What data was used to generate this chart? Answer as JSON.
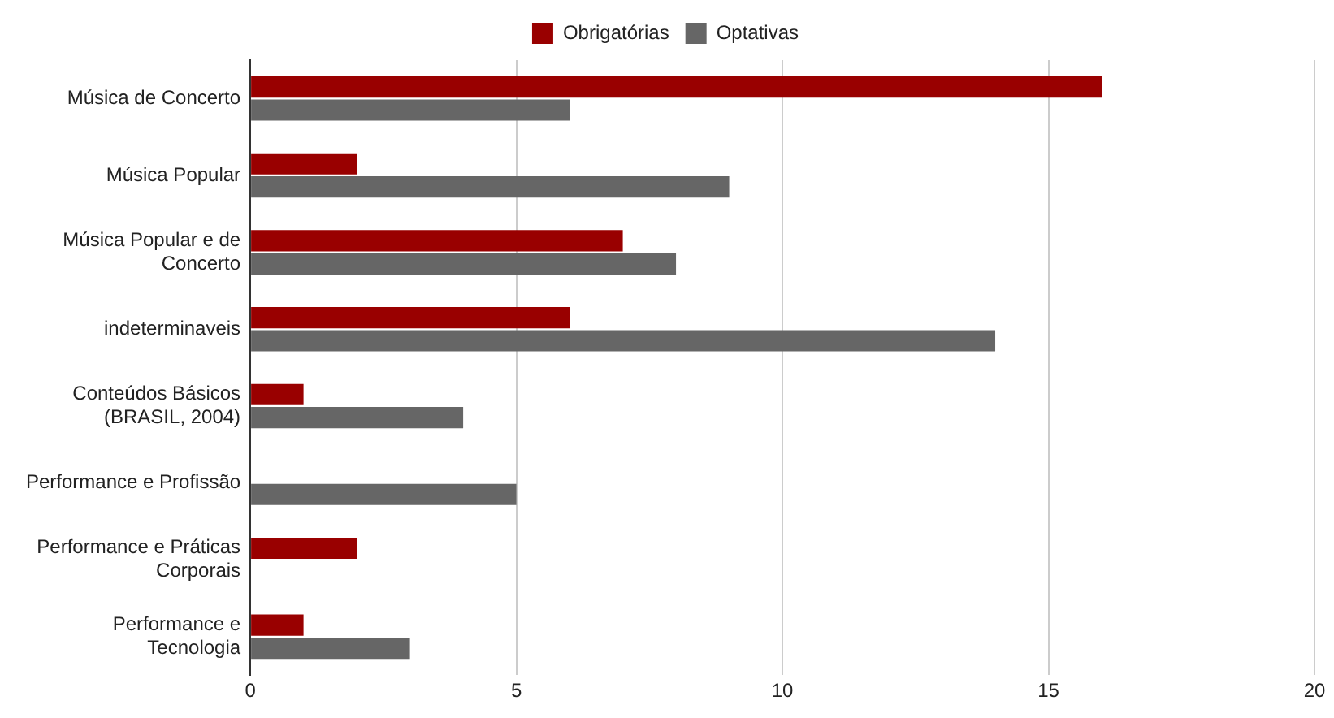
{
  "chart_data": {
    "type": "bar",
    "orientation": "horizontal",
    "categories": [
      "Música de Concerto",
      "Música Popular",
      "Música Popular e de Concerto",
      "indeterminaveis",
      "Conteúdos Básicos (BRASIL, 2004)",
      "Performance e Profissão",
      "Performance e Práticas Corporais",
      "Performance e Tecnologia"
    ],
    "series": [
      {
        "name": "Obrigatórias",
        "color": "#990000",
        "values": [
          16,
          2,
          7,
          6,
          1,
          null,
          2,
          1
        ]
      },
      {
        "name": "Optativas",
        "color": "#666666",
        "values": [
          6,
          9,
          8,
          14,
          4,
          5,
          null,
          3
        ]
      }
    ],
    "xlim": [
      0,
      20
    ],
    "xticks": [
      0,
      5,
      10,
      15,
      20
    ],
    "grid": "x",
    "legend": "top"
  }
}
